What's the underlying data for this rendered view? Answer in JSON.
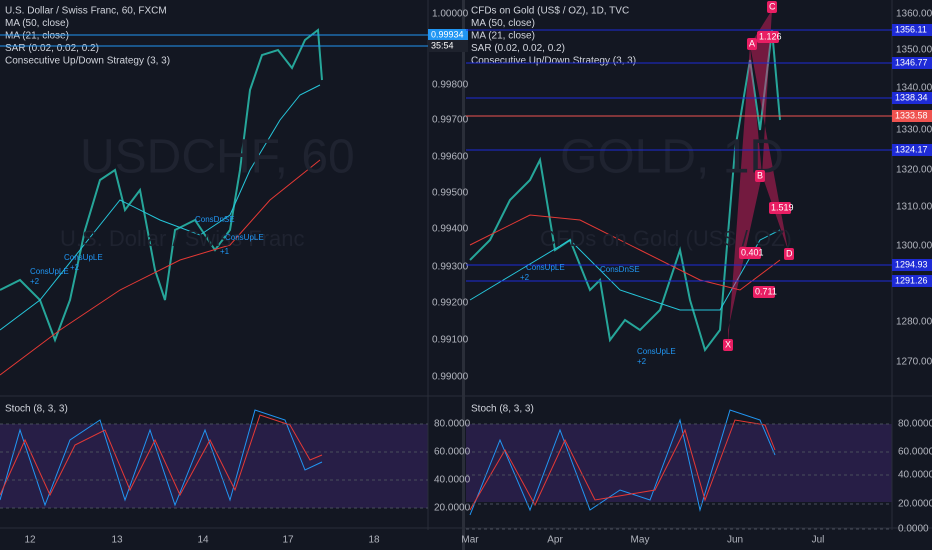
{
  "panels": [
    {
      "legend": [
        "U.S. Dollar / Swiss Franc, 60, FXCM",
        "MA (50, close)",
        "MA (21, close)",
        "SAR (0.02, 0.02, 0.2)",
        "Consecutive Up/Down Strategy (3, 3)"
      ],
      "watermark": [
        "USDCHF, 60",
        "U.S. Dollar / Swiss Franc"
      ],
      "price_ticks": [
        "1.00000",
        "0.99800",
        "0.99700",
        "0.99600",
        "0.99500",
        "0.99400",
        "0.99300",
        "0.99200",
        "0.99100",
        "0.99000"
      ],
      "price_labels": [
        "0.99934",
        "35:54"
      ],
      "markers": [
        "ConsUpLE",
        "+2",
        "ConsUpLE",
        "+2",
        "ConsDnSE",
        "ConsUpLE",
        "+1"
      ],
      "stoch_title": "Stoch (8, 3, 3)",
      "stoch_ticks": [
        "80.0000",
        "60.0000",
        "40.0000",
        "20.0000"
      ],
      "dates": [
        "12",
        "13",
        "14",
        "17",
        "18"
      ]
    },
    {
      "legend": [
        "CFDs on Gold (US$ / OZ), 1D, TVC",
        "MA (50, close)",
        "MA (21, close)",
        "SAR (0.02, 0.02, 0.2)",
        "Consecutive Up/Down Strategy (3, 3)"
      ],
      "watermark": [
        "GOLD, 1D",
        "CFDs on Gold (US$ / OZ)"
      ],
      "price_ticks": [
        "1360.00",
        "1350.00",
        "1340.00",
        "1330.00",
        "1320.00",
        "1310.00",
        "1300.00",
        "1280.00",
        "1270.00"
      ],
      "price_labels": [
        "1356.11",
        "1346.77",
        "1338.34",
        "1333.58",
        "1324.17",
        "1294.93",
        "1291.26"
      ],
      "pattern": [
        "X",
        "A",
        "B",
        "C",
        "D",
        "1.126",
        "1.519",
        "0.401",
        "0.711"
      ],
      "markers": [
        "ConsUpLE",
        "+2",
        "ConsDnSE",
        "ConsUpLE",
        "+2"
      ],
      "stoch_title": "Stoch (8, 3, 3)",
      "stoch_ticks": [
        "80.0000",
        "60.0000",
        "40.0000",
        "20.0000",
        "0.0000"
      ],
      "dates": [
        "Mar",
        "Apr",
        "May",
        "Jun",
        "Jul"
      ]
    }
  ]
}
